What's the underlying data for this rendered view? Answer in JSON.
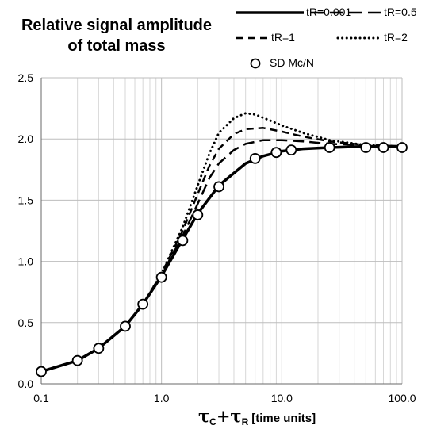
{
  "title": {
    "line1": "Relative signal amplitude",
    "line2": "of total mass"
  },
  "xlabel": {
    "sym1": "τ",
    "sub1": "C",
    "plus": "+",
    "sym2": "τ",
    "sub2": "R",
    "unit": "[time units]"
  },
  "chart_data": {
    "type": "line",
    "title": "Relative signal amplitude of total mass",
    "xlabel": "τC+τR [time units]",
    "ylabel": "",
    "xscale": "log",
    "xlim": [
      0.1,
      100
    ],
    "ylim": [
      0,
      2.5
    ],
    "x_ticks": [
      "0.1",
      "1.0",
      "10.0",
      "100.0"
    ],
    "y_ticks": [
      "0.0",
      "0.5",
      "1.0",
      "1.5",
      "2.0",
      "2.5"
    ],
    "grid": true,
    "legend_position": "top-right",
    "series": [
      {
        "name": "tR=0.001",
        "style": "solid-thick",
        "color": "#000000",
        "x": [
          0.1,
          0.2,
          0.3,
          0.5,
          0.7,
          1.0,
          1.5,
          2.0,
          3.0,
          5.0,
          7.0,
          10.0,
          15.0,
          25.0,
          50.0,
          70.0,
          100.0
        ],
        "y": [
          0.1,
          0.19,
          0.29,
          0.47,
          0.65,
          0.88,
          1.18,
          1.39,
          1.62,
          1.8,
          1.86,
          1.9,
          1.92,
          1.93,
          1.94,
          1.94,
          1.94
        ]
      },
      {
        "name": "tR=0.5",
        "style": "long-dash",
        "color": "#000000",
        "x": [
          0.1,
          0.2,
          0.3,
          0.5,
          0.7,
          1.0,
          1.5,
          2.0,
          2.5,
          3.0,
          4.0,
          5.0,
          7.0,
          10.0,
          15.0,
          25.0,
          50.0,
          100.0
        ],
        "y": [
          0.1,
          0.19,
          0.29,
          0.47,
          0.65,
          0.89,
          1.21,
          1.47,
          1.68,
          1.8,
          1.91,
          1.96,
          1.99,
          1.99,
          1.98,
          1.96,
          1.95,
          1.94
        ]
      },
      {
        "name": "tR=1",
        "style": "dash",
        "color": "#000000",
        "x": [
          0.1,
          0.2,
          0.3,
          0.5,
          0.7,
          1.0,
          1.5,
          2.0,
          2.5,
          3.0,
          4.0,
          5.0,
          7.0,
          10.0,
          15.0,
          25.0,
          50.0,
          100.0
        ],
        "y": [
          0.1,
          0.19,
          0.29,
          0.47,
          0.65,
          0.9,
          1.25,
          1.55,
          1.78,
          1.92,
          2.04,
          2.08,
          2.09,
          2.06,
          2.02,
          1.98,
          1.95,
          1.94
        ]
      },
      {
        "name": "tR=2",
        "style": "dot",
        "color": "#000000",
        "x": [
          0.1,
          0.2,
          0.3,
          0.5,
          0.7,
          1.0,
          1.5,
          2.0,
          2.5,
          3.0,
          4.0,
          5.0,
          6.0,
          8.0,
          10.0,
          15.0,
          25.0,
          50.0,
          100.0
        ],
        "y": [
          0.1,
          0.19,
          0.29,
          0.47,
          0.65,
          0.9,
          1.28,
          1.62,
          1.88,
          2.05,
          2.17,
          2.21,
          2.2,
          2.15,
          2.11,
          2.05,
          1.99,
          1.95,
          1.94
        ]
      },
      {
        "name": "SD Mc/N",
        "style": "markers",
        "marker": "open-circle",
        "color": "#000000",
        "x": [
          0.1,
          0.2,
          0.3,
          0.5,
          0.7,
          1.0,
          1.5,
          2.0,
          3.0,
          6.0,
          9.0,
          12.0,
          25.0,
          50.0,
          70.0,
          100.0
        ],
        "y": [
          0.1,
          0.19,
          0.29,
          0.47,
          0.65,
          0.87,
          1.17,
          1.38,
          1.61,
          1.84,
          1.89,
          1.91,
          1.93,
          1.93,
          1.93,
          1.93
        ]
      }
    ]
  }
}
